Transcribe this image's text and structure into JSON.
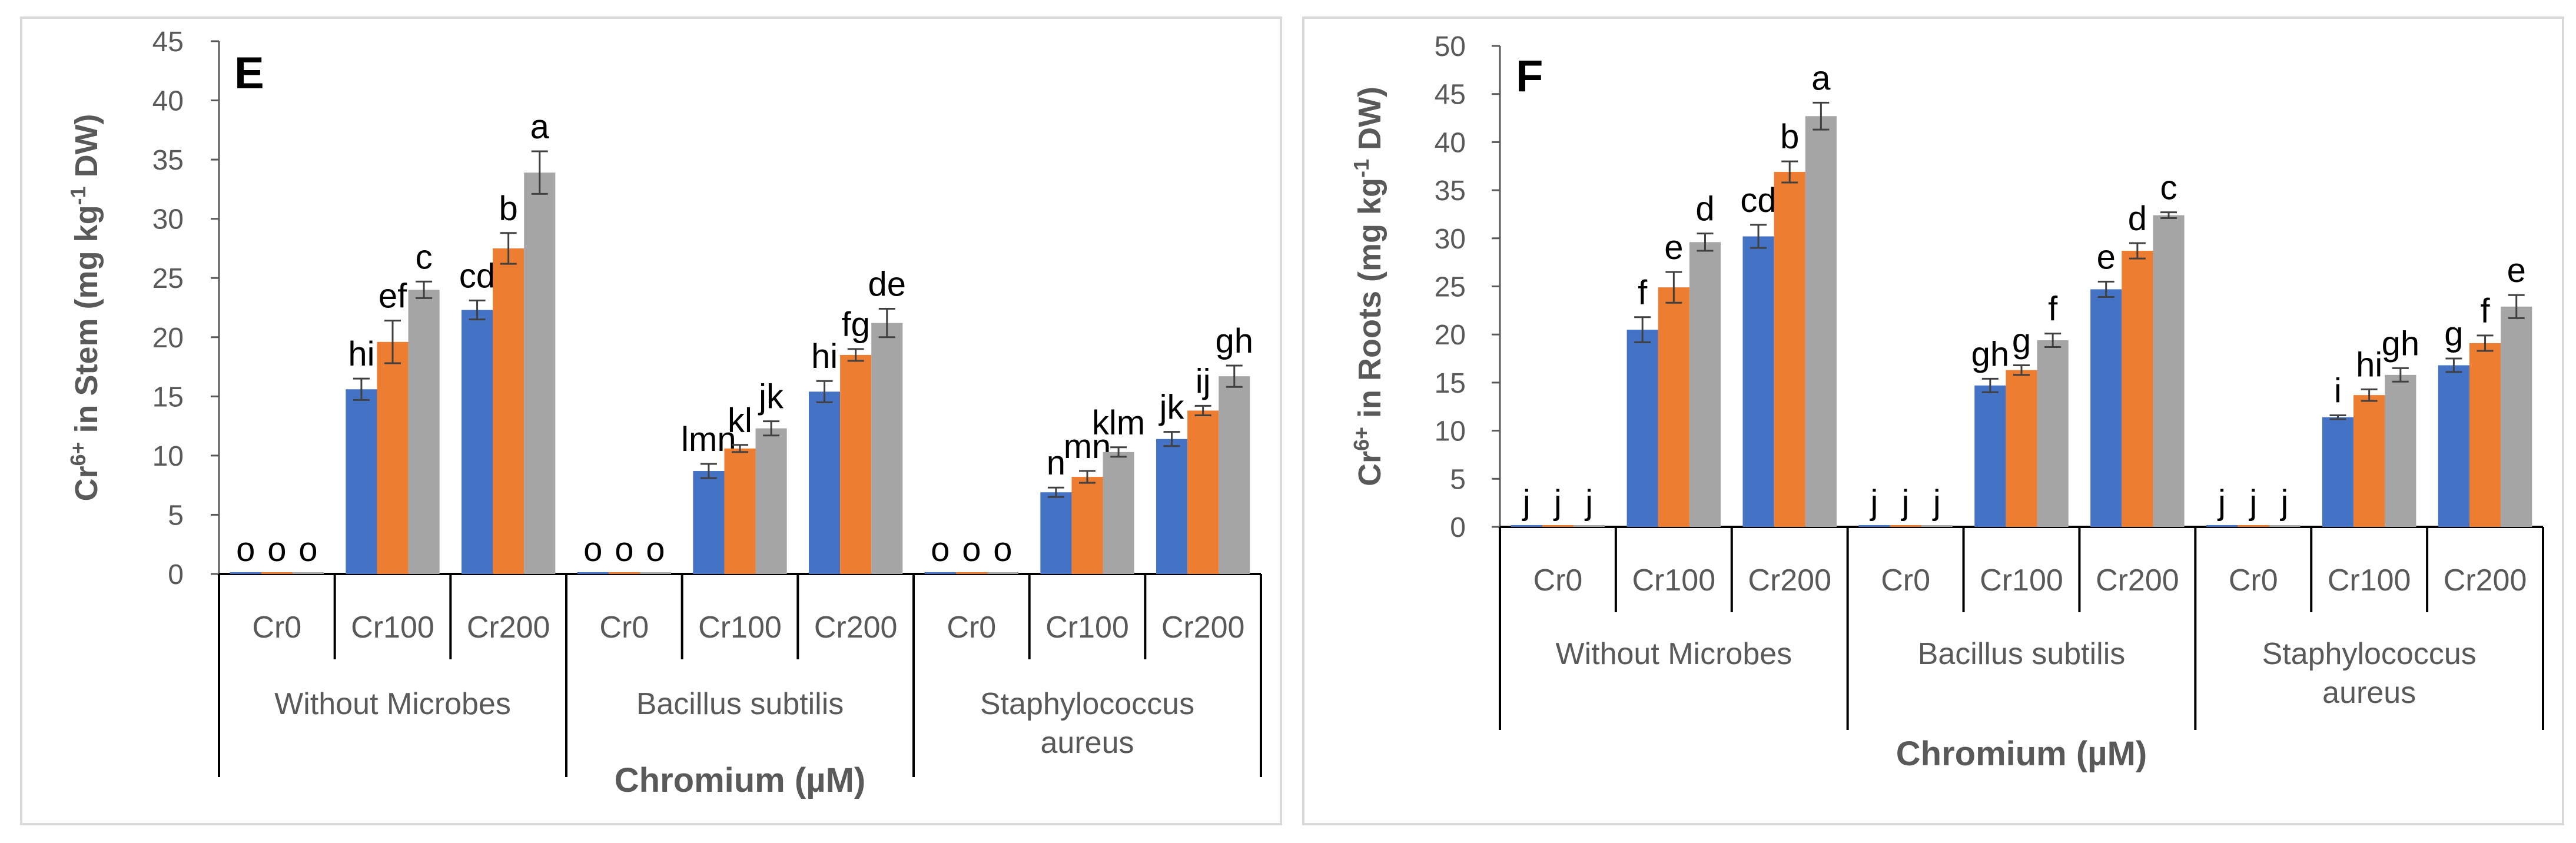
{
  "chart_data": [
    {
      "type": "bar",
      "panel_label": "E",
      "ylabel_main": "Cr",
      "ylabel_sup": "6+",
      "ylabel_unit_a": " in Stem (mg kg",
      "ylabel_unit_sup": "-1",
      "ylabel_unit_b": " DW)",
      "xlabel": "Chromium (µM)",
      "ylim": [
        0,
        45
      ],
      "yticks": [
        "0",
        "5",
        "10",
        "15",
        "20",
        "25",
        "30",
        "35",
        "40",
        "45"
      ],
      "groups": [
        "Without Microbes",
        "Bacillus subtilis",
        "Staphylococcus aureus"
      ],
      "categories": [
        "Cr0",
        "Cr100",
        "Cr200"
      ],
      "series_colors": [
        "#4472C4",
        "#ED7D31",
        "#A5A5A5"
      ],
      "values": [
        [
          [
            0,
            0,
            0
          ],
          [
            15.6,
            19.6,
            24.0
          ],
          [
            22.3,
            27.5,
            33.9
          ]
        ],
        [
          [
            0,
            0,
            0
          ],
          [
            8.7,
            10.6,
            12.3
          ],
          [
            15.4,
            18.5,
            21.2
          ]
        ],
        [
          [
            0,
            0,
            0
          ],
          [
            6.9,
            8.2,
            10.3
          ],
          [
            11.4,
            13.8,
            16.7
          ]
        ]
      ],
      "errors": [
        [
          [
            0,
            0,
            0
          ],
          [
            0.9,
            1.8,
            0.7
          ],
          [
            0.8,
            1.3,
            1.8
          ]
        ],
        [
          [
            0,
            0,
            0
          ],
          [
            0.6,
            0.3,
            0.6
          ],
          [
            0.9,
            0.5,
            1.2
          ]
        ],
        [
          [
            0,
            0,
            0
          ],
          [
            0.4,
            0.5,
            0.4
          ],
          [
            0.6,
            0.4,
            0.9
          ]
        ]
      ],
      "letters": [
        [
          [
            "o",
            "o",
            "o"
          ],
          [
            "hi",
            "ef",
            "c"
          ],
          [
            "cd",
            "b",
            "a"
          ]
        ],
        [
          [
            "o",
            "o",
            "o"
          ],
          [
            "lmn",
            "kl",
            "jk"
          ],
          [
            "hi",
            "fg",
            "de"
          ]
        ],
        [
          [
            "o",
            "o",
            "o"
          ],
          [
            "n",
            "mn",
            "klm"
          ],
          [
            "jk",
            "ij",
            "gh"
          ]
        ]
      ]
    },
    {
      "type": "bar",
      "panel_label": "F",
      "ylabel_main": "Cr",
      "ylabel_sup": "6+",
      "ylabel_unit_a": " in Roots (mg kg",
      "ylabel_unit_sup": "-1",
      "ylabel_unit_b": " DW)",
      "xlabel": "Chromium (µM)",
      "ylim": [
        0,
        50
      ],
      "yticks": [
        "0",
        "5",
        "10",
        "15",
        "20",
        "25",
        "30",
        "35",
        "40",
        "45",
        "50"
      ],
      "groups": [
        "Without Microbes",
        "Bacillus subtilis",
        "Staphylococcus aureus"
      ],
      "categories": [
        "Cr0",
        "Cr100",
        "Cr200"
      ],
      "series_colors": [
        "#4472C4",
        "#ED7D31",
        "#A5A5A5"
      ],
      "values": [
        [
          [
            0,
            0,
            0
          ],
          [
            20.5,
            24.9,
            29.6
          ],
          [
            30.2,
            36.9,
            42.7
          ]
        ],
        [
          [
            0,
            0,
            0
          ],
          [
            14.7,
            16.3,
            19.4
          ],
          [
            24.7,
            28.7,
            32.4
          ]
        ],
        [
          [
            0,
            0,
            0
          ],
          [
            11.4,
            13.7,
            15.8
          ],
          [
            16.8,
            19.1,
            22.9
          ]
        ]
      ],
      "errors": [
        [
          [
            0,
            0,
            0
          ],
          [
            1.3,
            1.6,
            0.9
          ],
          [
            1.2,
            1.1,
            1.4
          ]
        ],
        [
          [
            0,
            0,
            0
          ],
          [
            0.7,
            0.5,
            0.7
          ],
          [
            0.8,
            0.8,
            0.3
          ]
        ],
        [
          [
            0,
            0,
            0
          ],
          [
            0.2,
            0.6,
            0.7
          ],
          [
            0.7,
            0.8,
            1.2
          ]
        ]
      ],
      "letters": [
        [
          [
            "j",
            "j",
            "j"
          ],
          [
            "f",
            "e",
            "d"
          ],
          [
            "cd",
            "b",
            "a"
          ]
        ],
        [
          [
            "j",
            "j",
            "j"
          ],
          [
            "gh",
            "g",
            "f"
          ],
          [
            "e",
            "d",
            "c"
          ]
        ],
        [
          [
            "j",
            "j",
            "j"
          ],
          [
            "i",
            "hi",
            "gh"
          ],
          [
            "g",
            "f",
            "e"
          ]
        ]
      ]
    }
  ]
}
